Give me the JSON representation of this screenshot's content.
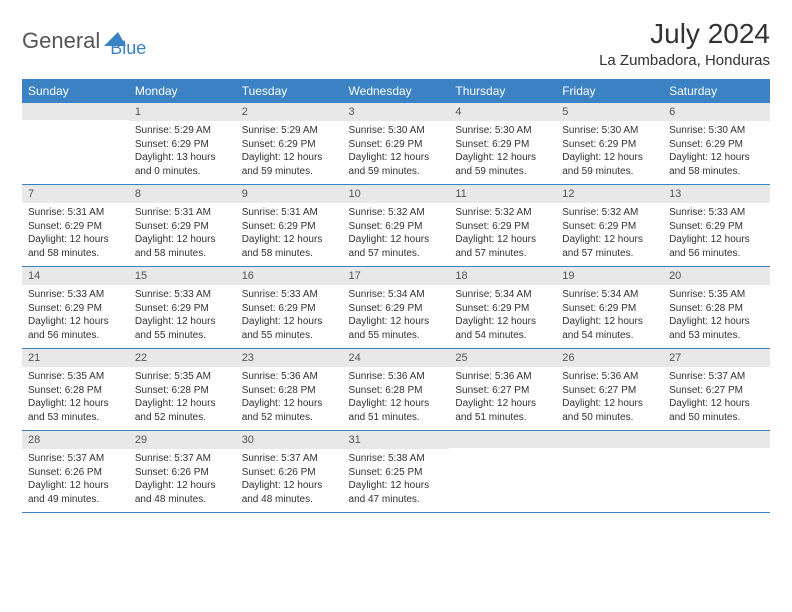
{
  "logo": {
    "text1": "General",
    "text2": "Blue"
  },
  "title": "July 2024",
  "location": "La Zumbadora, Honduras",
  "colors": {
    "header_bg": "#3b82c4",
    "header_text": "#ffffff",
    "daynum_bg": "#e8e8e8",
    "daynum_text": "#555555",
    "body_text": "#333333",
    "row_border": "#3b82c4",
    "logo_gray": "#555555",
    "logo_blue": "#3b82c4",
    "background": "#ffffff"
  },
  "typography": {
    "title_fontsize": 28,
    "location_fontsize": 15,
    "header_fontsize": 12,
    "daynum_fontsize": 11,
    "body_fontsize": 10
  },
  "headers": [
    "Sunday",
    "Monday",
    "Tuesday",
    "Wednesday",
    "Thursday",
    "Friday",
    "Saturday"
  ],
  "weeks": [
    [
      {
        "n": "",
        "sr": "",
        "ss": "",
        "dl": ""
      },
      {
        "n": "1",
        "sr": "Sunrise: 5:29 AM",
        "ss": "Sunset: 6:29 PM",
        "dl": "Daylight: 13 hours and 0 minutes."
      },
      {
        "n": "2",
        "sr": "Sunrise: 5:29 AM",
        "ss": "Sunset: 6:29 PM",
        "dl": "Daylight: 12 hours and 59 minutes."
      },
      {
        "n": "3",
        "sr": "Sunrise: 5:30 AM",
        "ss": "Sunset: 6:29 PM",
        "dl": "Daylight: 12 hours and 59 minutes."
      },
      {
        "n": "4",
        "sr": "Sunrise: 5:30 AM",
        "ss": "Sunset: 6:29 PM",
        "dl": "Daylight: 12 hours and 59 minutes."
      },
      {
        "n": "5",
        "sr": "Sunrise: 5:30 AM",
        "ss": "Sunset: 6:29 PM",
        "dl": "Daylight: 12 hours and 59 minutes."
      },
      {
        "n": "6",
        "sr": "Sunrise: 5:30 AM",
        "ss": "Sunset: 6:29 PM",
        "dl": "Daylight: 12 hours and 58 minutes."
      }
    ],
    [
      {
        "n": "7",
        "sr": "Sunrise: 5:31 AM",
        "ss": "Sunset: 6:29 PM",
        "dl": "Daylight: 12 hours and 58 minutes."
      },
      {
        "n": "8",
        "sr": "Sunrise: 5:31 AM",
        "ss": "Sunset: 6:29 PM",
        "dl": "Daylight: 12 hours and 58 minutes."
      },
      {
        "n": "9",
        "sr": "Sunrise: 5:31 AM",
        "ss": "Sunset: 6:29 PM",
        "dl": "Daylight: 12 hours and 58 minutes."
      },
      {
        "n": "10",
        "sr": "Sunrise: 5:32 AM",
        "ss": "Sunset: 6:29 PM",
        "dl": "Daylight: 12 hours and 57 minutes."
      },
      {
        "n": "11",
        "sr": "Sunrise: 5:32 AM",
        "ss": "Sunset: 6:29 PM",
        "dl": "Daylight: 12 hours and 57 minutes."
      },
      {
        "n": "12",
        "sr": "Sunrise: 5:32 AM",
        "ss": "Sunset: 6:29 PM",
        "dl": "Daylight: 12 hours and 57 minutes."
      },
      {
        "n": "13",
        "sr": "Sunrise: 5:33 AM",
        "ss": "Sunset: 6:29 PM",
        "dl": "Daylight: 12 hours and 56 minutes."
      }
    ],
    [
      {
        "n": "14",
        "sr": "Sunrise: 5:33 AM",
        "ss": "Sunset: 6:29 PM",
        "dl": "Daylight: 12 hours and 56 minutes."
      },
      {
        "n": "15",
        "sr": "Sunrise: 5:33 AM",
        "ss": "Sunset: 6:29 PM",
        "dl": "Daylight: 12 hours and 55 minutes."
      },
      {
        "n": "16",
        "sr": "Sunrise: 5:33 AM",
        "ss": "Sunset: 6:29 PM",
        "dl": "Daylight: 12 hours and 55 minutes."
      },
      {
        "n": "17",
        "sr": "Sunrise: 5:34 AM",
        "ss": "Sunset: 6:29 PM",
        "dl": "Daylight: 12 hours and 55 minutes."
      },
      {
        "n": "18",
        "sr": "Sunrise: 5:34 AM",
        "ss": "Sunset: 6:29 PM",
        "dl": "Daylight: 12 hours and 54 minutes."
      },
      {
        "n": "19",
        "sr": "Sunrise: 5:34 AM",
        "ss": "Sunset: 6:29 PM",
        "dl": "Daylight: 12 hours and 54 minutes."
      },
      {
        "n": "20",
        "sr": "Sunrise: 5:35 AM",
        "ss": "Sunset: 6:28 PM",
        "dl": "Daylight: 12 hours and 53 minutes."
      }
    ],
    [
      {
        "n": "21",
        "sr": "Sunrise: 5:35 AM",
        "ss": "Sunset: 6:28 PM",
        "dl": "Daylight: 12 hours and 53 minutes."
      },
      {
        "n": "22",
        "sr": "Sunrise: 5:35 AM",
        "ss": "Sunset: 6:28 PM",
        "dl": "Daylight: 12 hours and 52 minutes."
      },
      {
        "n": "23",
        "sr": "Sunrise: 5:36 AM",
        "ss": "Sunset: 6:28 PM",
        "dl": "Daylight: 12 hours and 52 minutes."
      },
      {
        "n": "24",
        "sr": "Sunrise: 5:36 AM",
        "ss": "Sunset: 6:28 PM",
        "dl": "Daylight: 12 hours and 51 minutes."
      },
      {
        "n": "25",
        "sr": "Sunrise: 5:36 AM",
        "ss": "Sunset: 6:27 PM",
        "dl": "Daylight: 12 hours and 51 minutes."
      },
      {
        "n": "26",
        "sr": "Sunrise: 5:36 AM",
        "ss": "Sunset: 6:27 PM",
        "dl": "Daylight: 12 hours and 50 minutes."
      },
      {
        "n": "27",
        "sr": "Sunrise: 5:37 AM",
        "ss": "Sunset: 6:27 PM",
        "dl": "Daylight: 12 hours and 50 minutes."
      }
    ],
    [
      {
        "n": "28",
        "sr": "Sunrise: 5:37 AM",
        "ss": "Sunset: 6:26 PM",
        "dl": "Daylight: 12 hours and 49 minutes."
      },
      {
        "n": "29",
        "sr": "Sunrise: 5:37 AM",
        "ss": "Sunset: 6:26 PM",
        "dl": "Daylight: 12 hours and 48 minutes."
      },
      {
        "n": "30",
        "sr": "Sunrise: 5:37 AM",
        "ss": "Sunset: 6:26 PM",
        "dl": "Daylight: 12 hours and 48 minutes."
      },
      {
        "n": "31",
        "sr": "Sunrise: 5:38 AM",
        "ss": "Sunset: 6:25 PM",
        "dl": "Daylight: 12 hours and 47 minutes."
      },
      {
        "n": "",
        "sr": "",
        "ss": "",
        "dl": ""
      },
      {
        "n": "",
        "sr": "",
        "ss": "",
        "dl": ""
      },
      {
        "n": "",
        "sr": "",
        "ss": "",
        "dl": ""
      }
    ]
  ]
}
